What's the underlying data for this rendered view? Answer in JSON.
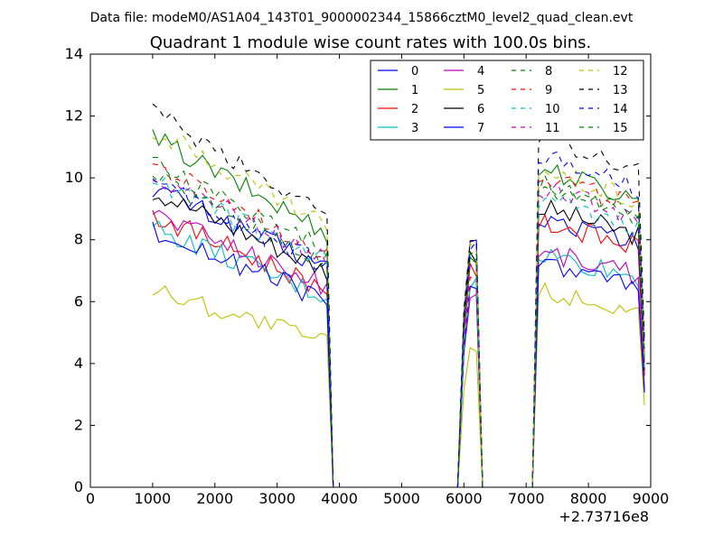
{
  "figure": {
    "suptitle": "Data file: modeM0/AS1A04_143T01_9000002344_15866cztM0_level2_quad_clean.evt"
  },
  "chart_data": {
    "type": "line",
    "title": "Quadrant 1 module wise count rates with 100.0s bins.",
    "xlabel": "",
    "ylabel": "",
    "x_offset_label": "+2.73716e8",
    "xlim": [
      0,
      9000
    ],
    "ylim": [
      0,
      14
    ],
    "x_ticks": [
      0,
      1000,
      2000,
      3000,
      4000,
      5000,
      6000,
      7000,
      8000,
      9000
    ],
    "y_ticks": [
      0,
      2,
      4,
      6,
      8,
      10,
      12,
      14
    ],
    "legend_position": "top-right",
    "legend_columns": 4,
    "segments": [
      [
        1000,
        3900
      ],
      [
        6000,
        6300
      ],
      [
        7200,
        8900
      ]
    ],
    "series": [
      {
        "name": "0",
        "color": "#0000ff",
        "style": "solid",
        "levels": [
          9.7,
          7.9,
          8.1
        ]
      },
      {
        "name": "1",
        "color": "#008000",
        "style": "solid",
        "levels": [
          11.3,
          7.3,
          9.6
        ]
      },
      {
        "name": "2",
        "color": "#ff0000",
        "style": "solid",
        "levels": [
          8.8,
          7.0,
          8.0
        ]
      },
      {
        "name": "3",
        "color": "#00bfbf",
        "style": "solid",
        "levels": [
          8.4,
          6.6,
          7.0
        ]
      },
      {
        "name": "4",
        "color": "#bf00bf",
        "style": "solid",
        "levels": [
          8.9,
          6.2,
          7.1
        ]
      },
      {
        "name": "5",
        "color": "#bfbf00",
        "style": "solid",
        "levels": [
          6.4,
          4.5,
          5.9
        ]
      },
      {
        "name": "6",
        "color": "#000000",
        "style": "solid",
        "levels": [
          9.6,
          7.5,
          8.4
        ]
      },
      {
        "name": "7",
        "color": "#0000ff",
        "style": "solid",
        "levels": [
          8.3,
          6.3,
          6.8
        ]
      },
      {
        "name": "8",
        "color": "#008000",
        "style": "dashed",
        "levels": [
          10.5,
          7.4,
          9.1
        ]
      },
      {
        "name": "9",
        "color": "#ff0000",
        "style": "dashed",
        "levels": [
          10.4,
          6.9,
          9.4
        ]
      },
      {
        "name": "10",
        "color": "#00bfbf",
        "style": "dashed",
        "levels": [
          9.9,
          6.5,
          8.6
        ]
      },
      {
        "name": "11",
        "color": "#bf00bf",
        "style": "dashed",
        "levels": [
          10.1,
          7.1,
          9.0
        ]
      },
      {
        "name": "12",
        "color": "#bfbf00",
        "style": "dashed",
        "levels": [
          11.6,
          7.7,
          9.6
        ]
      },
      {
        "name": "13",
        "color": "#000000",
        "style": "dashed",
        "levels": [
          12.1,
          8.2,
          10.6
        ]
      },
      {
        "name": "14",
        "color": "#0000ff",
        "style": "dashed",
        "levels": [
          9.8,
          7.8,
          10.0
        ]
      },
      {
        "name": "15",
        "color": "#008000",
        "style": "dashed",
        "levels": [
          10.0,
          7.6,
          9.1
        ]
      }
    ]
  }
}
